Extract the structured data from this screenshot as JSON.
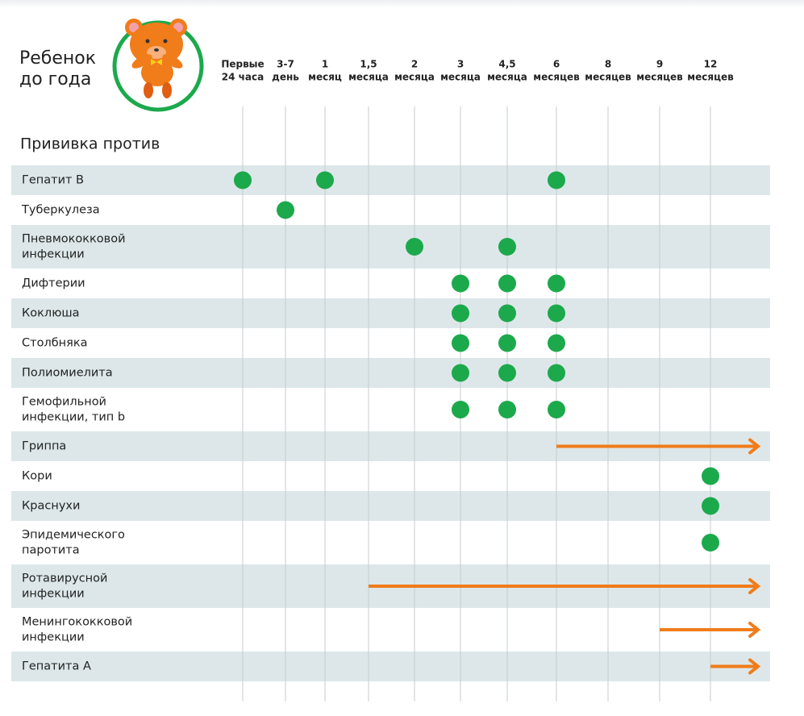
{
  "header": {
    "title": [
      "Ребенок",
      "до года"
    ],
    "subtitle": "Прививка против"
  },
  "columns": [
    [
      "Первые",
      "24 часа"
    ],
    [
      "3-7",
      "день"
    ],
    [
      "1",
      "месяц"
    ],
    [
      "1,5",
      "месяца"
    ],
    [
      "2",
      "месяца"
    ],
    [
      "3",
      "месяца"
    ],
    [
      "4,5",
      "месяца"
    ],
    [
      "6",
      "месяцев"
    ],
    [
      "8",
      "месяцев"
    ],
    [
      "9",
      "месяцев"
    ],
    [
      "12",
      "месяцев"
    ]
  ],
  "rows": [
    {
      "label": [
        "Гепатит В"
      ],
      "doses": [
        0,
        2,
        7
      ]
    },
    {
      "label": [
        "Туберкулеза"
      ],
      "doses": [
        1
      ]
    },
    {
      "label": [
        "Пневмококковой",
        "инфекции"
      ],
      "doses": [
        4,
        6
      ]
    },
    {
      "label": [
        "Дифтерии"
      ],
      "doses": [
        5,
        6,
        7
      ]
    },
    {
      "label": [
        "Коклюша"
      ],
      "doses": [
        5,
        6,
        7
      ]
    },
    {
      "label": [
        "Столбняка"
      ],
      "doses": [
        5,
        6,
        7
      ]
    },
    {
      "label": [
        "Полиомиелита"
      ],
      "doses": [
        5,
        6,
        7
      ]
    },
    {
      "label": [
        "Гемофильной",
        "инфекции, тип b"
      ],
      "doses": [
        5,
        6,
        7
      ]
    },
    {
      "label": [
        "Гриппа"
      ],
      "arrow_from": 7
    },
    {
      "label": [
        "Кори"
      ],
      "doses": [
        10
      ]
    },
    {
      "label": [
        "Краснухи"
      ],
      "doses": [
        10
      ]
    },
    {
      "label": [
        "Эпидемического",
        "паротита"
      ],
      "doses": [
        10
      ]
    },
    {
      "label": [
        "Ротавирусной",
        "инфекции"
      ],
      "arrow_from": 3
    },
    {
      "label": [
        "Менингококковой",
        "инфекции"
      ],
      "arrow_from": 9
    },
    {
      "label": [
        "Гепатита А"
      ],
      "arrow_from": 10
    }
  ]
}
